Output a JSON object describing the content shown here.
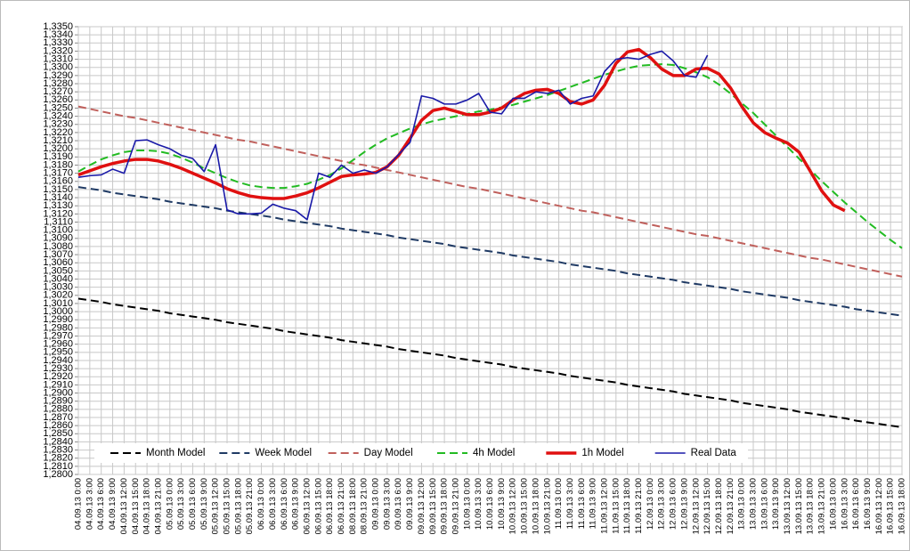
{
  "chart_data": {
    "type": "line",
    "categories": [
      "04.09.13 0:00",
      "04.09.13 3:00",
      "04.09.13 6:00",
      "04.09.13 9:00",
      "04.09.13 12:00",
      "04.09.13 15:00",
      "04.09.13 18:00",
      "04.09.13 21:00",
      "05.09.13 0:00",
      "05.09.13 3:00",
      "05.09.13 6:00",
      "05.09.13 9:00",
      "05.09.13 12:00",
      "05.09.13 15:00",
      "05.09.13 18:00",
      "05.09.13 21:00",
      "06.09.13 0:00",
      "06.09.13 3:00",
      "06.09.13 6:00",
      "06.09.13 9:00",
      "06.09.13 12:00",
      "06.09.13 15:00",
      "06.09.13 18:00",
      "06.09.13 21:00",
      "08.09.13 18:00",
      "08.09.13 21:00",
      "09.09.13 0:00",
      "09.09.13 3:00",
      "09.09.13 6:00",
      "09.09.13 9:00",
      "09.09.13 12:00",
      "09.09.13 15:00",
      "09.09.13 18:00",
      "09.09.13 21:00",
      "10.09.13 0:00",
      "10.09.13 3:00",
      "10.09.13 6:00",
      "10.09.13 9:00",
      "10.09.13 12:00",
      "10.09.13 15:00",
      "10.09.13 18:00",
      "10.09.13 21:00",
      "11.09.13 0:00",
      "11.09.13 3:00",
      "11.09.13 6:00",
      "11.09.13 9:00",
      "11.09.13 12:00",
      "11.09.13 15:00",
      "11.09.13 18:00",
      "11.09.13 21:00",
      "12.09.13 0:00",
      "12.09.13 3:00",
      "12.09.13 6:00",
      "12.09.13 9:00",
      "12.09.13 12:00",
      "12.09.13 15:00",
      "12.09.13 18:00",
      "12.09.13 21:00",
      "13.09.13 0:00",
      "13.09.13 3:00",
      "13.09.13 6:00",
      "13.09.13 9:00",
      "13.09.13 12:00",
      "13.09.13 15:00",
      "13.09.13 18:00",
      "13.09.13 21:00",
      "16.09.13 0:00",
      "16.09.13 3:00",
      "16.09.13 6:00",
      "16.09.13 9:00",
      "16.09.13 12:00",
      "16.09.13 15:00",
      "16.09.13 18:00"
    ],
    "series": [
      {
        "name": "Month Model",
        "color": "#000000",
        "dashed": true,
        "line_width": 2,
        "values": [
          1.3016,
          1.3014,
          1.3012,
          1.3009,
          1.3007,
          1.3005,
          1.3003,
          1.3001,
          1.2998,
          1.2996,
          1.2994,
          1.2992,
          1.299,
          1.2987,
          1.2985,
          1.2983,
          1.2981,
          1.2979,
          1.2976,
          1.2974,
          1.2972,
          1.297,
          1.2968,
          1.2965,
          1.2963,
          1.2961,
          1.2959,
          1.2957,
          1.2954,
          1.2952,
          1.295,
          1.2948,
          1.2946,
          1.2943,
          1.2941,
          1.2939,
          1.2937,
          1.2935,
          1.2932,
          1.293,
          1.2928,
          1.2926,
          1.2924,
          1.2921,
          1.2919,
          1.2917,
          1.2915,
          1.2913,
          1.291,
          1.2908,
          1.2906,
          1.2904,
          1.2902,
          1.2899,
          1.2897,
          1.2895,
          1.2893,
          1.2891,
          1.2888,
          1.2886,
          1.2884,
          1.2882,
          1.288,
          1.2877,
          1.2875,
          1.2873,
          1.2871,
          1.2869,
          1.2866,
          1.2864,
          1.2862,
          1.286,
          1.2858
        ]
      },
      {
        "name": "Week Model",
        "color": "#1f3a64",
        "dashed": true,
        "line_width": 2,
        "values": [
          1.3153,
          1.3151,
          1.3149,
          1.3146,
          1.3144,
          1.3142,
          1.314,
          1.3138,
          1.3135,
          1.3133,
          1.3131,
          1.3129,
          1.3127,
          1.3124,
          1.3122,
          1.312,
          1.3118,
          1.3116,
          1.3113,
          1.3111,
          1.3109,
          1.3107,
          1.3105,
          1.3102,
          1.31,
          1.3098,
          1.3096,
          1.3094,
          1.3091,
          1.3089,
          1.3087,
          1.3085,
          1.3083,
          1.308,
          1.3078,
          1.3076,
          1.3074,
          1.3072,
          1.3069,
          1.3067,
          1.3065,
          1.3063,
          1.3061,
          1.3058,
          1.3056,
          1.3054,
          1.3052,
          1.305,
          1.3047,
          1.3045,
          1.3043,
          1.3041,
          1.3039,
          1.3036,
          1.3034,
          1.3032,
          1.303,
          1.3028,
          1.3025,
          1.3023,
          1.3021,
          1.3019,
          1.3017,
          1.3014,
          1.3012,
          1.301,
          1.3008,
          1.3006,
          1.3003,
          1.3001,
          1.2999,
          1.2997,
          1.2995
        ]
      },
      {
        "name": "Day Model",
        "color": "#c0605c",
        "dashed": true,
        "line_width": 2,
        "values": [
          1.3252,
          1.3249,
          1.3246,
          1.3243,
          1.324,
          1.3238,
          1.3235,
          1.3232,
          1.3229,
          1.3226,
          1.3223,
          1.322,
          1.3217,
          1.3214,
          1.3211,
          1.3209,
          1.3206,
          1.3203,
          1.32,
          1.3197,
          1.3194,
          1.3191,
          1.3188,
          1.3185,
          1.3182,
          1.318,
          1.3177,
          1.3174,
          1.3171,
          1.3168,
          1.3165,
          1.3162,
          1.3159,
          1.3156,
          1.3153,
          1.3151,
          1.3148,
          1.3145,
          1.3142,
          1.3139,
          1.3136,
          1.3133,
          1.313,
          1.3127,
          1.3124,
          1.3122,
          1.3119,
          1.3116,
          1.3113,
          1.311,
          1.3107,
          1.3104,
          1.3101,
          1.3098,
          1.3095,
          1.3093,
          1.309,
          1.3087,
          1.3084,
          1.3081,
          1.3078,
          1.3075,
          1.3072,
          1.3069,
          1.3066,
          1.3064,
          1.3061,
          1.3058,
          1.3055,
          1.3052,
          1.3049,
          1.3046,
          1.3043
        ]
      },
      {
        "name": "4h Model",
        "color": "#22bb22",
        "dashed": true,
        "line_width": 2,
        "values": [
          1.3172,
          1.318,
          1.3187,
          1.3192,
          1.3196,
          1.3198,
          1.3198,
          1.3197,
          1.3194,
          1.3189,
          1.3183,
          1.3176,
          1.317,
          1.3164,
          1.3159,
          1.3155,
          1.3153,
          1.3152,
          1.3152,
          1.3154,
          1.3157,
          1.3162,
          1.3168,
          1.3176,
          1.3186,
          1.3196,
          1.3205,
          1.3213,
          1.3219,
          1.3225,
          1.323,
          1.3234,
          1.3237,
          1.324,
          1.3243,
          1.3246,
          1.3248,
          1.3251,
          1.3254,
          1.3258,
          1.3262,
          1.3266,
          1.3271,
          1.3276,
          1.3281,
          1.3286,
          1.3291,
          1.3295,
          1.3299,
          1.3302,
          1.3303,
          1.3304,
          1.3303,
          1.3299,
          1.3294,
          1.3288,
          1.3279,
          1.3268,
          1.3256,
          1.3244,
          1.323,
          1.3216,
          1.3202,
          1.3188,
          1.3174,
          1.316,
          1.3147,
          1.3134,
          1.3122,
          1.311,
          1.3099,
          1.3088,
          1.3078
        ]
      },
      {
        "name": "1h Model",
        "color": "#e01010",
        "dashed": false,
        "line_width": 3.5,
        "values": [
          1.3168,
          1.3173,
          1.3178,
          1.3182,
          1.3185,
          1.3187,
          1.3187,
          1.3185,
          1.3181,
          1.3176,
          1.317,
          1.3164,
          1.3158,
          1.3151,
          1.3146,
          1.3142,
          1.314,
          1.3139,
          1.3139,
          1.3142,
          1.3146,
          1.3152,
          1.3159,
          1.3166,
          1.3168,
          1.3169,
          1.3171,
          1.3178,
          1.3192,
          1.3213,
          1.3235,
          1.3247,
          1.325,
          1.3246,
          1.3242,
          1.3242,
          1.3245,
          1.325,
          1.326,
          1.3268,
          1.3272,
          1.3273,
          1.3268,
          1.3258,
          1.3255,
          1.326,
          1.3278,
          1.3305,
          1.3319,
          1.3322,
          1.3312,
          1.3298,
          1.329,
          1.329,
          1.3298,
          1.3299,
          1.3292,
          1.3275,
          1.3252,
          1.3232,
          1.322,
          1.3213,
          1.3207,
          1.3196,
          1.3172,
          1.3148,
          1.3131,
          1.3124,
          null,
          null,
          null,
          null,
          null
        ]
      },
      {
        "name": "Real Data",
        "color": "#1a1aa8",
        "dashed": false,
        "line_width": 1.6,
        "values": [
          1.3165,
          1.3167,
          1.3168,
          1.3175,
          1.317,
          1.321,
          1.3211,
          1.3205,
          1.32,
          1.3192,
          1.3188,
          1.3172,
          1.3205,
          1.3125,
          1.312,
          1.312,
          1.3121,
          1.3132,
          1.3127,
          1.3124,
          1.3113,
          1.317,
          1.3165,
          1.318,
          1.317,
          1.3174,
          1.317,
          1.3178,
          1.3193,
          1.3208,
          1.3265,
          1.3262,
          1.3255,
          1.3255,
          1.326,
          1.3268,
          1.3245,
          1.3243,
          1.3262,
          1.3262,
          1.327,
          1.3268,
          1.3272,
          1.3255,
          1.3262,
          1.3265,
          1.3295,
          1.331,
          1.3312,
          1.331,
          1.3316,
          1.332,
          1.3308,
          1.329,
          1.3288,
          1.3315,
          null,
          null,
          null,
          null,
          null,
          null,
          null,
          null,
          null,
          null,
          null,
          null,
          null,
          null,
          null,
          null,
          null
        ]
      }
    ],
    "ylim": [
      1.28,
      1.335
    ],
    "yticks": [
      {
        "value": 1.28,
        "label": "1,2800"
      },
      {
        "value": 1.281,
        "label": "1,2810"
      },
      {
        "value": 1.282,
        "label": "1,2820"
      },
      {
        "value": 1.283,
        "label": "1,2830"
      },
      {
        "value": 1.284,
        "label": "1,2840"
      },
      {
        "value": 1.285,
        "label": "1,2850"
      },
      {
        "value": 1.286,
        "label": "1,2860"
      },
      {
        "value": 1.287,
        "label": "1,2870"
      },
      {
        "value": 1.288,
        "label": "1,2880"
      },
      {
        "value": 1.289,
        "label": "1,2890"
      },
      {
        "value": 1.29,
        "label": "1,2900"
      },
      {
        "value": 1.291,
        "label": "1,2910"
      },
      {
        "value": 1.292,
        "label": "1,2920"
      },
      {
        "value": 1.293,
        "label": "1,2930"
      },
      {
        "value": 1.294,
        "label": "1,2940"
      },
      {
        "value": 1.295,
        "label": "1,2950"
      },
      {
        "value": 1.296,
        "label": "1,2960"
      },
      {
        "value": 1.297,
        "label": "1,2970"
      },
      {
        "value": 1.298,
        "label": "1,2980"
      },
      {
        "value": 1.299,
        "label": "1,2990"
      },
      {
        "value": 1.3,
        "label": "1,3000"
      },
      {
        "value": 1.301,
        "label": "1,3010"
      },
      {
        "value": 1.302,
        "label": "1,3020"
      },
      {
        "value": 1.303,
        "label": "1,3030"
      },
      {
        "value": 1.304,
        "label": "1,3040"
      },
      {
        "value": 1.305,
        "label": "1,3050"
      },
      {
        "value": 1.306,
        "label": "1,3060"
      },
      {
        "value": 1.307,
        "label": "1,3070"
      },
      {
        "value": 1.308,
        "label": "1,3080"
      },
      {
        "value": 1.309,
        "label": "1,3090"
      },
      {
        "value": 1.31,
        "label": "1,3100"
      },
      {
        "value": 1.311,
        "label": "1,3110"
      },
      {
        "value": 1.312,
        "label": "1,3120"
      },
      {
        "value": 1.313,
        "label": "1,3130"
      },
      {
        "value": 1.314,
        "label": "1,3140"
      },
      {
        "value": 1.315,
        "label": "1,3150"
      },
      {
        "value": 1.316,
        "label": "1,3160"
      },
      {
        "value": 1.317,
        "label": "1,3170"
      },
      {
        "value": 1.318,
        "label": "1,3180"
      },
      {
        "value": 1.319,
        "label": "1,3190"
      },
      {
        "value": 1.32,
        "label": "1,3200"
      },
      {
        "value": 1.321,
        "label": "1,3210"
      },
      {
        "value": 1.322,
        "label": "1,3220"
      },
      {
        "value": 1.323,
        "label": "1,3230"
      },
      {
        "value": 1.324,
        "label": "1,3240"
      },
      {
        "value": 1.325,
        "label": "1,3250"
      },
      {
        "value": 1.326,
        "label": "1,3260"
      },
      {
        "value": 1.327,
        "label": "1,3270"
      },
      {
        "value": 1.328,
        "label": "1,3280"
      },
      {
        "value": 1.329,
        "label": "1,3290"
      },
      {
        "value": 1.33,
        "label": "1,3300"
      },
      {
        "value": 1.331,
        "label": "1,3310"
      },
      {
        "value": 1.332,
        "label": "1,3320"
      },
      {
        "value": 1.333,
        "label": "1,3330"
      },
      {
        "value": 1.334,
        "label": "1,3340"
      },
      {
        "value": 1.335,
        "label": "1,3350"
      }
    ],
    "grid": true,
    "legend": "bottom"
  }
}
